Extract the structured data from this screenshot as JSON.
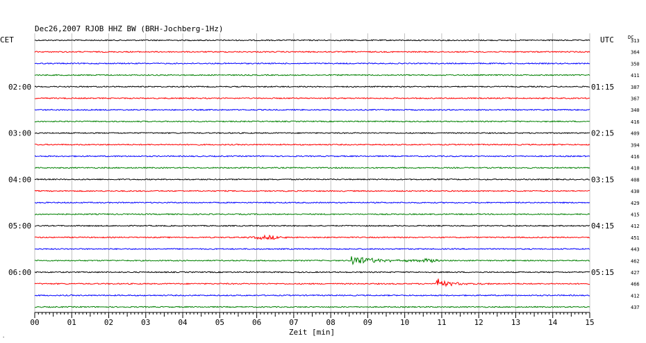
{
  "chart_data": {
    "type": "line",
    "title": "Dec26,2007   RJOB HHZ BW (BRH-Jochberg-1Hz)",
    "left_timezone": "CET",
    "right_timezone": "UTC",
    "dc_label": "DC",
    "xlabel": "Zeit [min]",
    "xlim": [
      0,
      15
    ],
    "x_ticks": [
      "00",
      "01",
      "02",
      "03",
      "04",
      "05",
      "06",
      "07",
      "08",
      "09",
      "10",
      "11",
      "12",
      "13",
      "14",
      "15"
    ],
    "left_hour_labels": [
      {
        "trace": 4,
        "text": "02:00"
      },
      {
        "trace": 8,
        "text": "03:00"
      },
      {
        "trace": 12,
        "text": "04:00"
      },
      {
        "trace": 16,
        "text": "05:00"
      },
      {
        "trace": 20,
        "text": "06:00"
      }
    ],
    "right_hour_labels": [
      {
        "trace": 4,
        "text": "01:15"
      },
      {
        "trace": 8,
        "text": "02:15"
      },
      {
        "trace": 12,
        "text": "03:15"
      },
      {
        "trace": 16,
        "text": "04:15"
      },
      {
        "trace": 20,
        "text": "05:15"
      }
    ],
    "trace_colors": [
      "#000000",
      "#ff0000",
      "#0000ff",
      "#008000"
    ],
    "dc_offsets": [
      313,
      364,
      350,
      411,
      387,
      367,
      340,
      416,
      409,
      394,
      416,
      410,
      408,
      430,
      429,
      415,
      412,
      451,
      443,
      462,
      427,
      466,
      412,
      437
    ],
    "events": [
      {
        "trace": 17,
        "start_min": 5.7,
        "end_min": 6.9,
        "amplitude": 2.5,
        "type": "burst"
      },
      {
        "trace": 19,
        "start_min": 8.55,
        "end_min": 11.0,
        "amplitude": 8,
        "type": "quake"
      },
      {
        "trace": 19,
        "start_min": 10.3,
        "end_min": 10.9,
        "amplitude": 3,
        "type": "burst"
      },
      {
        "trace": 21,
        "start_min": 10.85,
        "end_min": 12.3,
        "amplitude": 8,
        "type": "quake"
      }
    ]
  },
  "footnote": "."
}
